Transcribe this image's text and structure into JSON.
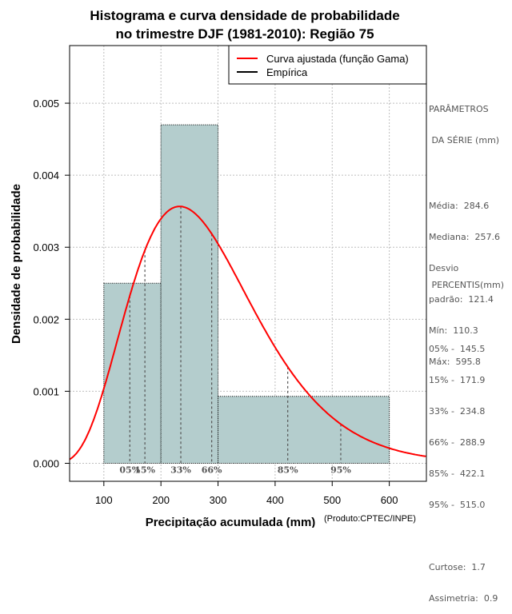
{
  "chart_data": {
    "type": "histogram",
    "title_line1": "Histograma e curva densidade de probabilidade",
    "title_line2": "no trimestre DJF (1981-2010): Região 75",
    "xlabel": "Precipitação acumulada (mm)",
    "ylabel": "Densidade de probabilidade",
    "credit": "(Produto:CPTEC/INPE)",
    "xlim": [
      40,
      665
    ],
    "ylim": [
      -0.00025,
      0.0058
    ],
    "x_ticks": [
      100,
      200,
      300,
      400,
      500,
      600
    ],
    "y_ticks": [
      0.0,
      0.001,
      0.002,
      0.003,
      0.004,
      0.005
    ],
    "y_tick_labels": [
      "0.000",
      "0.001",
      "0.002",
      "0.003",
      "0.004",
      "0.005"
    ],
    "grid": true,
    "bins": [
      {
        "start": 100,
        "end": 200,
        "density": 0.0025
      },
      {
        "start": 200,
        "end": 300,
        "density": 0.0047
      },
      {
        "start": 300,
        "end": 600,
        "density": 0.00093
      }
    ],
    "gamma_fit": {
      "mean": 284.6,
      "sd": 121.4
    },
    "legend": {
      "position": "top-right",
      "items": [
        {
          "label": "Curva ajustada (função Gama)",
          "color": "#ff0000"
        },
        {
          "label": "Empírica",
          "color": "#000000"
        }
      ]
    },
    "percentile_marks": [
      {
        "label": "05%",
        "value": 145.5
      },
      {
        "label": "15%",
        "value": 171.9
      },
      {
        "label": "33%",
        "value": 234.8
      },
      {
        "label": "66%",
        "value": 288.9
      },
      {
        "label": "85%",
        "value": 422.1
      },
      {
        "label": "95%",
        "value": 515.0
      }
    ],
    "colors": {
      "bars": "#b4cdcd",
      "curve": "#ff0000",
      "grid": "#bebebe",
      "percentile": "#555555"
    }
  },
  "side_panel": {
    "params_title_1": "PARÂMETROS",
    "params_title_2": " DA SÉRIE (mm)",
    "media": "Média:  284.6",
    "mediana": "Mediana:  257.6",
    "desvio_1": "Desvio",
    "desvio_2": "padrão:  121.4",
    "min": "Mín:  110.3",
    "max": "Máx:  595.8",
    "percentis_title": " PERCENTIS(mm)",
    "p05": "05% -  145.5",
    "p15": "15% -  171.9",
    "p33": "33% -  234.8",
    "p66": "66% -  288.9",
    "p85": "85% -  422.1",
    "p95": "95% -  515.0",
    "curtose": "Curtose:  1.7",
    "assimetria": "Assimetria:  0.9"
  }
}
